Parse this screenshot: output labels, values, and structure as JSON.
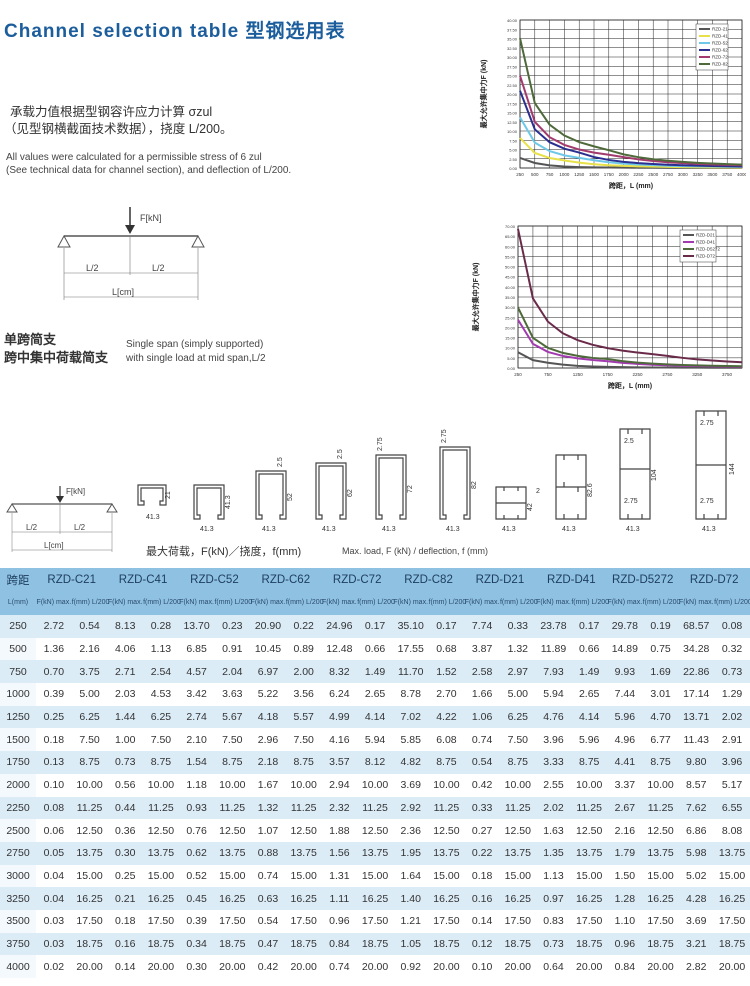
{
  "title": "Channel selection table 型钢选用表",
  "intro": {
    "cn_line1": "承载力值根据型钢容许应力计算 σzul",
    "cn_line2": "（见型钢横截面技术数据），挠度 L/200。",
    "en_line1": "All values were calculated for a permissible stress of  6 zul",
    "en_line2": "(See technical data for channel section), and deflection of L/200."
  },
  "beam_diagram": {
    "force": "F[kN]",
    "half_left": "L/2",
    "half_right": "L/2",
    "length": "L[cm]"
  },
  "support": {
    "cn_line1": "单跨简支",
    "cn_line2": "跨中集中荷载简支",
    "en_line1": "Single span (simply supported)",
    "en_line2": "with single load at mid span,L/2"
  },
  "load_caption": {
    "cn": "最大荷载，F(kN)／挠度，f(mm)",
    "en": "Max. load, F (kN) / deflection, f (mm)"
  },
  "profiles": [
    {
      "dims": [
        "41.3",
        "21"
      ]
    },
    {
      "dims": [
        "41.3",
        "41.3"
      ]
    },
    {
      "dims": [
        "41.3",
        "52",
        "2.5"
      ]
    },
    {
      "dims": [
        "41.3",
        "62",
        "2.5"
      ]
    },
    {
      "dims": [
        "41.3",
        "72",
        "2.75"
      ]
    },
    {
      "dims": [
        "41.3",
        "82",
        "2.75"
      ]
    },
    {
      "dims": [
        "41.3",
        "42",
        "2"
      ]
    },
    {
      "dims": [
        "41.3",
        "82.6"
      ]
    },
    {
      "dims": [
        "41.3",
        "104",
        "2.5",
        "2.75"
      ]
    },
    {
      "dims": [
        "41.3",
        "144",
        "2.75",
        "2.75"
      ]
    }
  ],
  "chart_data": [
    {
      "type": "line",
      "title": "",
      "xlabel": "跨距，L (mm)",
      "ylabel": "最大允许集中力F (kN)",
      "x": [
        250,
        500,
        750,
        1000,
        1250,
        1500,
        1750,
        2000,
        2250,
        2500,
        2750,
        3000,
        3250,
        3500,
        3750,
        4000
      ],
      "xticks": [
        "250",
        "500",
        "750",
        "1000",
        "1250",
        "1500",
        "1750",
        "2000",
        "2250",
        "2500",
        "2750",
        "3000",
        "3250",
        "3500",
        "3750",
        "4000"
      ],
      "yticks": [
        "0.00",
        "2.50",
        "5.00",
        "7.50",
        "10.00",
        "12.50",
        "15.00",
        "17.50",
        "20.00",
        "22.50",
        "25.00",
        "27.50",
        "30.00",
        "32.50",
        "35.00",
        "37.50",
        "40.00"
      ],
      "ylim": [
        0,
        40
      ],
      "legend_position": "top-right",
      "series": [
        {
          "name": "RZD-21",
          "color": "#555555",
          "values": [
            2.72,
            1.36,
            0.7,
            0.39,
            0.25,
            0.18,
            0.13,
            0.1,
            0.08,
            0.06,
            0.05,
            0.04,
            0.04,
            0.03,
            0.03,
            0.02
          ]
        },
        {
          "name": "RZD-41",
          "color": "#e8e14a",
          "values": [
            8.13,
            4.06,
            2.71,
            2.03,
            1.44,
            1.0,
            0.73,
            0.56,
            0.44,
            0.36,
            0.3,
            0.25,
            0.21,
            0.18,
            0.16,
            0.14
          ]
        },
        {
          "name": "RZD-52",
          "color": "#6ec8e8",
          "values": [
            13.7,
            6.85,
            4.57,
            3.42,
            2.74,
            2.1,
            1.54,
            1.18,
            0.93,
            0.76,
            0.62,
            0.52,
            0.45,
            0.39,
            0.34,
            0.3
          ]
        },
        {
          "name": "RZD-62",
          "color": "#2b2f8f",
          "values": [
            20.9,
            10.45,
            6.97,
            5.22,
            4.18,
            2.96,
            2.18,
            1.67,
            1.32,
            1.07,
            0.88,
            0.74,
            0.63,
            0.54,
            0.47,
            0.42
          ]
        },
        {
          "name": "RZD-72",
          "color": "#a23a6e",
          "values": [
            24.96,
            12.48,
            8.32,
            6.24,
            4.99,
            4.16,
            3.57,
            2.94,
            2.32,
            1.88,
            1.56,
            1.31,
            1.11,
            0.96,
            0.84,
            0.74
          ]
        },
        {
          "name": "RZD-82",
          "color": "#4e6a3a",
          "values": [
            35.1,
            17.55,
            11.7,
            8.78,
            7.02,
            5.85,
            4.82,
            3.69,
            2.92,
            2.36,
            1.95,
            1.64,
            1.4,
            1.21,
            1.05,
            0.92
          ]
        }
      ]
    },
    {
      "type": "line",
      "title": "",
      "xlabel": "跨距，L (mm)",
      "ylabel": "最大允许集中力F (kN)",
      "x": [
        250,
        500,
        750,
        1000,
        1250,
        1500,
        1750,
        2000,
        2250,
        2500,
        2750,
        3000,
        3250,
        3500,
        3750,
        4000
      ],
      "xticks": [
        "250",
        "750",
        "1250",
        "1750",
        "2250",
        "2750",
        "3250",
        "3750"
      ],
      "yticks": [
        "0.00",
        "5.00",
        "10.00",
        "15.00",
        "20.00",
        "25.00",
        "30.00",
        "35.00",
        "40.00",
        "45.00",
        "50.00",
        "55.00",
        "60.00",
        "65.00",
        "70.00"
      ],
      "ylim": [
        0,
        70
      ],
      "legend_position": "top-left",
      "series": [
        {
          "name": "RZD-D21",
          "color": "#555555",
          "values": [
            7.74,
            3.87,
            2.58,
            1.66,
            1.06,
            0.74,
            0.54,
            0.42,
            0.33,
            0.27,
            0.22,
            0.18,
            0.16,
            0.14,
            0.12,
            0.1
          ]
        },
        {
          "name": "RZD-D41",
          "color": "#a23ab0",
          "values": [
            23.78,
            11.89,
            7.93,
            5.94,
            4.76,
            3.96,
            3.33,
            2.55,
            2.02,
            1.63,
            1.35,
            1.13,
            0.97,
            0.83,
            0.73,
            0.64
          ]
        },
        {
          "name": "RZD-D5272",
          "color": "#4e6a3a",
          "values": [
            29.78,
            14.89,
            9.93,
            7.44,
            5.96,
            4.96,
            4.41,
            3.37,
            2.67,
            2.16,
            1.79,
            1.5,
            1.28,
            1.1,
            0.96,
            0.84
          ]
        },
        {
          "name": "RZD-D72",
          "color": "#6a2a4a",
          "values": [
            68.57,
            34.28,
            22.86,
            17.14,
            13.71,
            11.43,
            9.8,
            8.57,
            7.62,
            6.86,
            5.98,
            5.02,
            4.28,
            3.69,
            3.21,
            2.82
          ]
        }
      ]
    }
  ],
  "table": {
    "span_header": "跨距",
    "span_unit": "L(mm)",
    "models": [
      "RZD-C21",
      "RZD-C41",
      "RZD-C52",
      "RZD-C62",
      "RZD-C72",
      "RZD-C82",
      "RZD-D21",
      "RZD-D41",
      "RZD-D5272",
      "RZD-D72"
    ],
    "sub_f": "F(kN) max.",
    "sub_d": "f(mm) L/200",
    "rows": [
      [
        "250",
        "2.72",
        "0.54",
        "8.13",
        "0.28",
        "13.70",
        "0.23",
        "20.90",
        "0.22",
        "24.96",
        "0.17",
        "35.10",
        "0.17",
        "7.74",
        "0.33",
        "23.78",
        "0.17",
        "29.78",
        "0.19",
        "68.57",
        "0.08"
      ],
      [
        "500",
        "1.36",
        "2.16",
        "4.06",
        "1.13",
        "6.85",
        "0.91",
        "10.45",
        "0.89",
        "12.48",
        "0.66",
        "17.55",
        "0.68",
        "3.87",
        "1.32",
        "11.89",
        "0.66",
        "14.89",
        "0.75",
        "34.28",
        "0.32"
      ],
      [
        "750",
        "0.70",
        "3.75",
        "2.71",
        "2.54",
        "4.57",
        "2.04",
        "6.97",
        "2.00",
        "8.32",
        "1.49",
        "11.70",
        "1.52",
        "2.58",
        "2.97",
        "7.93",
        "1.49",
        "9.93",
        "1.69",
        "22.86",
        "0.73"
      ],
      [
        "1000",
        "0.39",
        "5.00",
        "2.03",
        "4.53",
        "3.42",
        "3.63",
        "5.22",
        "3.56",
        "6.24",
        "2.65",
        "8.78",
        "2.70",
        "1.66",
        "5.00",
        "5.94",
        "2.65",
        "7.44",
        "3.01",
        "17.14",
        "1.29"
      ],
      [
        "1250",
        "0.25",
        "6.25",
        "1.44",
        "6.25",
        "2.74",
        "5.67",
        "4.18",
        "5.57",
        "4.99",
        "4.14",
        "7.02",
        "4.22",
        "1.06",
        "6.25",
        "4.76",
        "4.14",
        "5.96",
        "4.70",
        "13.71",
        "2.02"
      ],
      [
        "1500",
        "0.18",
        "7.50",
        "1.00",
        "7.50",
        "2.10",
        "7.50",
        "2.96",
        "7.50",
        "4.16",
        "5.94",
        "5.85",
        "6.08",
        "0.74",
        "7.50",
        "3.96",
        "5.96",
        "4.96",
        "6.77",
        "11.43",
        "2.91"
      ],
      [
        "1750",
        "0.13",
        "8.75",
        "0.73",
        "8.75",
        "1.54",
        "8.75",
        "2.18",
        "8.75",
        "3.57",
        "8.12",
        "4.82",
        "8.75",
        "0.54",
        "8.75",
        "3.33",
        "8.75",
        "4.41",
        "8.75",
        "9.80",
        "3.96"
      ],
      [
        "2000",
        "0.10",
        "10.00",
        "0.56",
        "10.00",
        "1.18",
        "10.00",
        "1.67",
        "10.00",
        "2.94",
        "10.00",
        "3.69",
        "10.00",
        "0.42",
        "10.00",
        "2.55",
        "10.00",
        "3.37",
        "10.00",
        "8.57",
        "5.17"
      ],
      [
        "2250",
        "0.08",
        "11.25",
        "0.44",
        "11.25",
        "0.93",
        "11.25",
        "1.32",
        "11.25",
        "2.32",
        "11.25",
        "2.92",
        "11.25",
        "0.33",
        "11.25",
        "2.02",
        "11.25",
        "2.67",
        "11.25",
        "7.62",
        "6.55"
      ],
      [
        "2500",
        "0.06",
        "12.50",
        "0.36",
        "12.50",
        "0.76",
        "12.50",
        "1.07",
        "12.50",
        "1.88",
        "12.50",
        "2.36",
        "12.50",
        "0.27",
        "12.50",
        "1.63",
        "12.50",
        "2.16",
        "12.50",
        "6.86",
        "8.08"
      ],
      [
        "2750",
        "0.05",
        "13.75",
        "0.30",
        "13.75",
        "0.62",
        "13.75",
        "0.88",
        "13.75",
        "1.56",
        "13.75",
        "1.95",
        "13.75",
        "0.22",
        "13.75",
        "1.35",
        "13.75",
        "1.79",
        "13.75",
        "5.98",
        "13.75"
      ],
      [
        "3000",
        "0.04",
        "15.00",
        "0.25",
        "15.00",
        "0.52",
        "15.00",
        "0.74",
        "15.00",
        "1.31",
        "15.00",
        "1.64",
        "15.00",
        "0.18",
        "15.00",
        "1.13",
        "15.00",
        "1.50",
        "15.00",
        "5.02",
        "15.00"
      ],
      [
        "3250",
        "0.04",
        "16.25",
        "0.21",
        "16.25",
        "0.45",
        "16.25",
        "0.63",
        "16.25",
        "1.11",
        "16.25",
        "1.40",
        "16.25",
        "0.16",
        "16.25",
        "0.97",
        "16.25",
        "1.28",
        "16.25",
        "4.28",
        "16.25"
      ],
      [
        "3500",
        "0.03",
        "17.50",
        "0.18",
        "17.50",
        "0.39",
        "17.50",
        "0.54",
        "17.50",
        "0.96",
        "17.50",
        "1.21",
        "17.50",
        "0.14",
        "17.50",
        "0.83",
        "17.50",
        "1.10",
        "17.50",
        "3.69",
        "17.50"
      ],
      [
        "3750",
        "0.03",
        "18.75",
        "0.16",
        "18.75",
        "0.34",
        "18.75",
        "0.47",
        "18.75",
        "0.84",
        "18.75",
        "1.05",
        "18.75",
        "0.12",
        "18.75",
        "0.73",
        "18.75",
        "0.96",
        "18.75",
        "3.21",
        "18.75"
      ],
      [
        "4000",
        "0.02",
        "20.00",
        "0.14",
        "20.00",
        "0.30",
        "20.00",
        "0.42",
        "20.00",
        "0.74",
        "20.00",
        "0.92",
        "20.00",
        "0.10",
        "20.00",
        "0.64",
        "20.00",
        "0.84",
        "20.00",
        "2.82",
        "20.00"
      ]
    ]
  }
}
